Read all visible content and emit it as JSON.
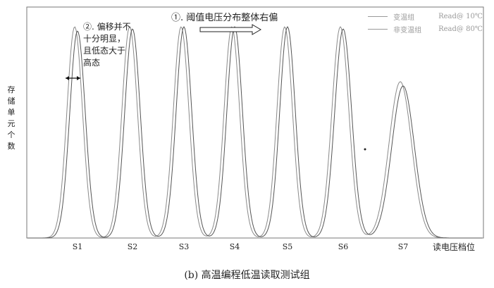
{
  "chart_data": {
    "type": "line",
    "title": "",
    "xlabel": "读电压档位",
    "ylabel": "存储单元个数",
    "categories": [
      "S1",
      "S2",
      "S3",
      "S4",
      "S5",
      "S6",
      "S7"
    ],
    "series": [
      {
        "name": "变温组",
        "condition": "Read@ 10℃",
        "peaks": [
          1.0,
          1.0,
          1.0,
          1.0,
          1.0,
          1.0,
          0.74
        ]
      },
      {
        "name": "非变温组",
        "condition": "Read@ 80℃",
        "peaks": [
          0.98,
          0.99,
          1.0,
          1.0,
          1.0,
          0.99,
          0.72
        ]
      }
    ],
    "grid": false,
    "legend_position": "top-right",
    "annotations": {
      "shift_all": "①. 阈值电压分布整体右偏",
      "shift_low": "②. 偏移并不十分明显，且低态大于高态"
    }
  },
  "caption": "(b) 高温编程低温读取测试组"
}
